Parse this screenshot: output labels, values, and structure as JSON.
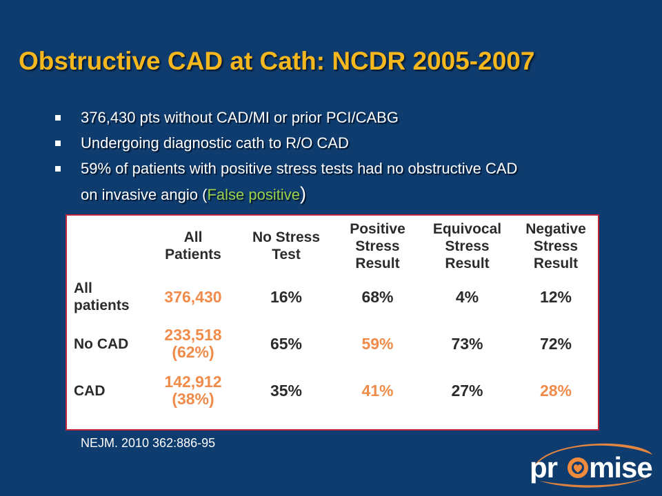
{
  "slide": {
    "title": "Obstructive CAD at Cath: NCDR 2005-2007",
    "bullets": [
      "376,430 pts without CAD/MI or prior PCI/CABG",
      "Undergoing diagnostic cath to R/O CAD"
    ],
    "bullet3": {
      "line1": "59% of patients with positive stress tests had no obstructive CAD",
      "line2_before": "on invasive angio (",
      "highlight": "False positive",
      "after": ")"
    },
    "citation": "NEJM. 2010 362:886-95",
    "logo_text": "promise"
  },
  "table": {
    "headers": [
      "",
      "All\nPatients",
      "No Stress\nTest",
      "Positive\nStress\nResult",
      "Equivocal\nStress\nResult",
      "Negative\nStress\nResult"
    ],
    "rows": [
      {
        "label": "All\npatients",
        "cells": [
          {
            "text": "376,430",
            "orange": true
          },
          {
            "text": "16%",
            "orange": false
          },
          {
            "text": "68%",
            "orange": false
          },
          {
            "text": "4%",
            "orange": false
          },
          {
            "text": "12%",
            "orange": false
          }
        ]
      },
      {
        "label": "No CAD",
        "cells": [
          {
            "text": "233,518\n(62%)",
            "orange": true
          },
          {
            "text": "65%",
            "orange": false
          },
          {
            "text": "59%",
            "orange": true
          },
          {
            "text": "73%",
            "orange": false
          },
          {
            "text": "72%",
            "orange": false
          }
        ]
      },
      {
        "label": "CAD",
        "cells": [
          {
            "text": "142,912\n(38%)",
            "orange": true
          },
          {
            "text": "35%",
            "orange": false
          },
          {
            "text": "41%",
            "orange": true
          },
          {
            "text": "27%",
            "orange": false
          },
          {
            "text": "28%",
            "orange": true
          }
        ]
      }
    ]
  },
  "colors": {
    "background": "#0f3c6e",
    "title": "#f5b71e",
    "highlight_green": "#9bd24b",
    "table_orange": "#f08b4a",
    "panel_border": "#c0243a",
    "logo_orange": "#f08a3c"
  }
}
